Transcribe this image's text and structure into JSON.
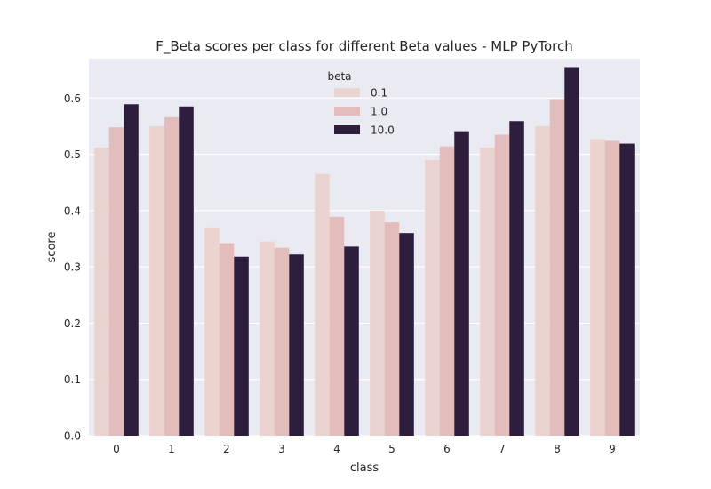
{
  "chart_data": {
    "type": "bar",
    "title": "F_Beta scores per class for different Beta values - MLP PyTorch",
    "xlabel": "class",
    "ylabel": "score",
    "categories": [
      "0",
      "1",
      "2",
      "3",
      "4",
      "5",
      "6",
      "7",
      "8",
      "9"
    ],
    "ylim": [
      0,
      0.67
    ],
    "yticks": [
      "0.0",
      "0.1",
      "0.2",
      "0.3",
      "0.4",
      "0.5",
      "0.6"
    ],
    "grid": true,
    "legend": {
      "title": "beta",
      "placement": "upper center"
    },
    "series": [
      {
        "name": "0.1",
        "color": "#ebd3cf",
        "values": [
          0.512,
          0.55,
          0.37,
          0.345,
          0.465,
          0.4,
          0.49,
          0.512,
          0.55,
          0.527
        ]
      },
      {
        "name": "1.0",
        "color": "#e3bcbc",
        "values": [
          0.548,
          0.566,
          0.342,
          0.334,
          0.389,
          0.379,
          0.514,
          0.535,
          0.598,
          0.524
        ]
      },
      {
        "name": "10.0",
        "color": "#2d1e3e",
        "values": [
          0.589,
          0.585,
          0.318,
          0.322,
          0.336,
          0.36,
          0.541,
          0.559,
          0.655,
          0.519
        ]
      }
    ],
    "plot_background": "#eaeaf2",
    "grid_color": "#ffffff"
  }
}
